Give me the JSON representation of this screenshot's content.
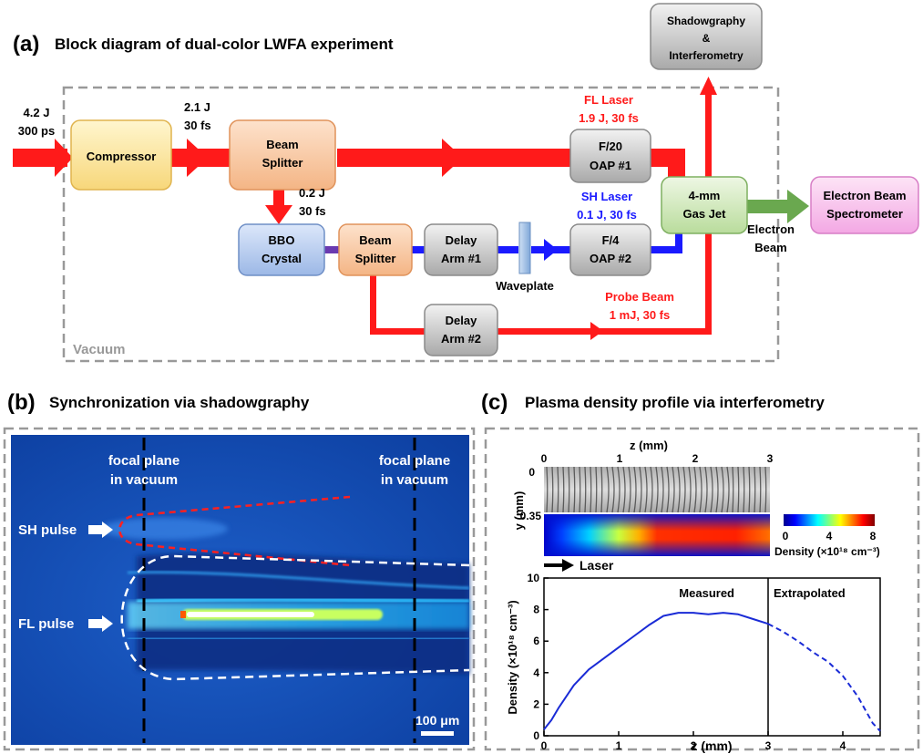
{
  "panel_a": {
    "letter": "(a)",
    "title": "Block diagram of dual-color LWFA experiment",
    "vacuum_label": "Vacuum",
    "inputs": {
      "energy_in": "4.2 J",
      "duration_in": "300 ps",
      "energy_comp": "2.1 J",
      "duration_comp": "30 fs",
      "energy_split": "0.2 J",
      "duration_split": "30 fs"
    },
    "boxes": {
      "compressor": "Compressor",
      "beam_splitter_1": [
        "Beam",
        "Splitter"
      ],
      "bbo": [
        "BBO",
        "Crystal"
      ],
      "beam_splitter_2": [
        "Beam",
        "Splitter"
      ],
      "delay1": [
        "Delay",
        "Arm #1"
      ],
      "delay2": [
        "Delay",
        "Arm #2"
      ],
      "oap1": [
        "F/20",
        "OAP #1"
      ],
      "oap2": [
        "F/4",
        "OAP #2"
      ],
      "gas_jet": [
        "4-mm",
        "Gas Jet"
      ],
      "spectrometer": [
        "Electron Beam",
        "Spectrometer"
      ],
      "shadow": [
        "Shadowgraphy",
        "&",
        "Interferometry"
      ]
    },
    "waveplate": "Waveplate",
    "electron_beam": [
      "Electron",
      "Beam"
    ],
    "fl_laser": [
      "FL Laser",
      "1.9 J, 30 fs"
    ],
    "sh_laser": [
      "SH Laser",
      "0.1 J, 30 fs"
    ],
    "probe": [
      "Probe Beam",
      "1 mJ, 30 fs"
    ],
    "colors": {
      "red": "#ff1a1a",
      "blue": "#1a1aff",
      "green": "#6aa84f"
    }
  },
  "panel_b": {
    "letter": "(b)",
    "title": "Synchronization via shadowgraphy",
    "focal_left": [
      "focal plane",
      "in vacuum"
    ],
    "focal_right": [
      "focal plane",
      "in vacuum"
    ],
    "sh_pulse": "SH pulse",
    "fl_pulse": "FL pulse",
    "scale": "100 μm"
  },
  "panel_c": {
    "letter": "(c)",
    "title": "Plasma density profile via interferometry",
    "img_xlabel": "z (mm)",
    "img_xticks": [
      "0",
      "1",
      "2",
      "3"
    ],
    "img_ylabel": "y (mm)",
    "img_yticks": [
      "0",
      "0.35"
    ],
    "colorbar_ticks": [
      "0",
      "4",
      "8"
    ],
    "colorbar_label": "Density (×10¹⁸ cm⁻³)",
    "laser_label": "Laser",
    "measured": "Measured",
    "extrapolated": "Extrapolated"
  },
  "chart_data": {
    "type": "line",
    "xlabel": "z (mm)",
    "ylabel": "Density (×10¹⁸ cm⁻³)",
    "xlim": [
      0,
      4.5
    ],
    "ylim": [
      0,
      10
    ],
    "xticks": [
      0,
      1,
      2,
      3,
      4
    ],
    "yticks": [
      0,
      2,
      4,
      6,
      8,
      10
    ],
    "divider_x": 3,
    "series": [
      {
        "name": "Measured",
        "style": "solid",
        "x": [
          0,
          0.1,
          0.2,
          0.4,
          0.6,
          0.8,
          1.0,
          1.2,
          1.4,
          1.6,
          1.8,
          2.0,
          2.2,
          2.4,
          2.6,
          2.8,
          3.0
        ],
        "y": [
          0.4,
          1.0,
          1.8,
          3.2,
          4.2,
          4.9,
          5.6,
          6.3,
          7.0,
          7.6,
          7.8,
          7.8,
          7.7,
          7.8,
          7.7,
          7.4,
          7.1
        ]
      },
      {
        "name": "Extrapolated",
        "style": "dashed",
        "x": [
          3.0,
          3.2,
          3.4,
          3.6,
          3.8,
          4.0,
          4.2,
          4.4,
          4.5
        ],
        "y": [
          7.1,
          6.6,
          6.0,
          5.3,
          4.7,
          3.8,
          2.5,
          0.8,
          0.3
        ]
      }
    ]
  }
}
